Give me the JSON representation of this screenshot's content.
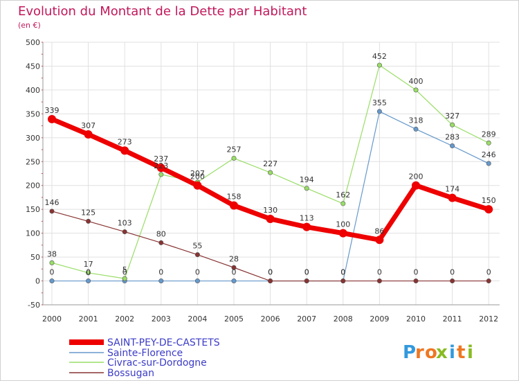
{
  "chart_data": {
    "type": "line",
    "title": "Evolution du Montant de la Dette par Habitant",
    "subtitle": "(en €)",
    "x": [
      "2000",
      "2001",
      "2002",
      "2003",
      "2004",
      "2005",
      "2006",
      "2007",
      "2008",
      "2009",
      "2010",
      "2011",
      "2012"
    ],
    "y_ticks": [
      "-50",
      "0",
      "50",
      "100",
      "150",
      "200",
      "250",
      "300",
      "350",
      "400",
      "450",
      "500"
    ],
    "ylim": [
      -50,
      500
    ],
    "grid": true,
    "legend_position": "bottom-left",
    "series": [
      {
        "name": "SAINT-PEY-DE-CASTETS",
        "color": "#ee0000",
        "values": [
          339,
          307,
          273,
          237,
          200,
          158,
          130,
          113,
          100,
          86,
          200,
          174,
          150
        ],
        "labels": [
          "339",
          "307",
          "273",
          "237",
          "200",
          "158",
          "130",
          "113",
          "100",
          "86",
          "200",
          "174",
          "150"
        ]
      },
      {
        "name": "Sainte-Florence",
        "color": "#6699cc",
        "values": [
          0,
          0,
          0,
          0,
          0,
          0,
          0,
          0,
          0,
          355,
          318,
          283,
          246
        ],
        "labels": [
          "0",
          "0",
          "0",
          "0",
          "0",
          "0",
          "0",
          "0",
          "0",
          "355",
          "318",
          "283",
          "246"
        ]
      },
      {
        "name": "Civrac-sur-Dordogne",
        "color": "#99dd66",
        "values": [
          38,
          17,
          5,
          223,
          207,
          257,
          227,
          194,
          162,
          452,
          400,
          327,
          289
        ],
        "labels": [
          "38",
          "17",
          "5",
          "223",
          "207",
          "257",
          "227",
          "194",
          "162",
          "452",
          "400",
          "327",
          "289"
        ]
      },
      {
        "name": "Bossugan",
        "color": "#883333",
        "values": [
          146,
          125,
          103,
          80,
          55,
          28,
          0,
          0,
          0,
          0,
          0,
          0,
          0
        ],
        "labels": [
          "146",
          "125",
          "103",
          "80",
          "55",
          "28",
          "0",
          "0",
          "0",
          "0",
          "0",
          "0",
          "0"
        ]
      }
    ]
  },
  "logo": {
    "text": "Proxiti",
    "letters": [
      "P",
      "r",
      "o",
      "x",
      "i",
      "t",
      "i"
    ],
    "colors": [
      "#3399dd",
      "#ee7722",
      "#ee7722",
      "#88bb22",
      "#3399dd",
      "#ee7722",
      "#88bb22"
    ]
  },
  "colors": {
    "title": "#c2185b",
    "grid": "#e0e0e0",
    "legend_text": "#3b3bc8"
  }
}
